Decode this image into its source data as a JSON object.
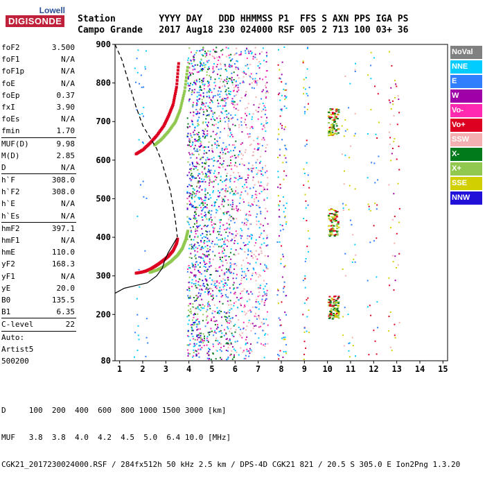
{
  "logo": {
    "line1": "Lowell",
    "line2": "DIGISONDE"
  },
  "header": {
    "line1": "Station        YYYY DAY   DDD HHMMSS P1  FFS S AXN PPS IGA PS",
    "line2": "Campo Grande   2017 Aug18 230 024000 RSF 005 2 713 100 03+ 36"
  },
  "params": [
    {
      "label": "foF2",
      "value": "3.500"
    },
    {
      "label": "foF1",
      "value": "N/A"
    },
    {
      "label": "foF1p",
      "value": "N/A"
    },
    {
      "label": "foE",
      "value": "N/A"
    },
    {
      "label": "foEp",
      "value": "0.37"
    },
    {
      "label": "fxI",
      "value": "3.90"
    },
    {
      "label": "foEs",
      "value": "N/A"
    },
    {
      "label": "fmin",
      "value": "1.70"
    },
    {
      "label": "MUF(D)",
      "value": "9.98"
    },
    {
      "label": "M(D)",
      "value": "2.85"
    },
    {
      "label": "D",
      "value": "N/A"
    },
    {
      "label": "h`F",
      "value": "308.0"
    },
    {
      "label": "h`F2",
      "value": "308.0"
    },
    {
      "label": "h`E",
      "value": "N/A"
    },
    {
      "label": "h`Es",
      "value": "N/A"
    },
    {
      "label": "hmF2",
      "value": "397.1"
    },
    {
      "label": "hmF1",
      "value": "N/A"
    },
    {
      "label": "hmE",
      "value": "110.0"
    },
    {
      "label": "yF2",
      "value": "168.3"
    },
    {
      "label": "yF1",
      "value": "N/A"
    },
    {
      "label": "yE",
      "value": "20.0"
    },
    {
      "label": "B0",
      "value": "135.5"
    },
    {
      "label": "B1",
      "value": "6.35"
    },
    {
      "label": "C-level",
      "value": "22"
    },
    {
      "label": "Auto:",
      "value": ""
    },
    {
      "label": "Artist5",
      "value": ""
    },
    {
      "label": "500200",
      "value": ""
    }
  ],
  "legend": [
    {
      "label": "NoVal",
      "color": "#808080"
    },
    {
      "label": "NNE",
      "color": "#00ccff"
    },
    {
      "label": "E",
      "color": "#2f7fff"
    },
    {
      "label": "W",
      "color": "#a000a8"
    },
    {
      "label": "Vo-",
      "color": "#ff2ab0"
    },
    {
      "label": "Vo+",
      "color": "#dd0020"
    },
    {
      "label": "SSW",
      "color": "#f4b0b0"
    },
    {
      "label": "X-",
      "color": "#007a1a"
    },
    {
      "label": "X+",
      "color": "#90c850"
    },
    {
      "label": "SSE",
      "color": "#d2cf00"
    },
    {
      "label": "NNW",
      "color": "#2010d8"
    }
  ],
  "footer": {
    "line1": "D     100  200  400  600  800 1000 1500 3000 [km]",
    "line2": "MUF   3.8  3.8  4.0  4.2  4.5  5.0  6.4 10.0 [MHz]",
    "line3": "CGK21_2017230024000.RSF / 284fx512h 50 kHz 2.5 km / DPS-4D CGK21 821 / 20.5 S 305.0 E Ion2Png 1.3.20"
  },
  "chart_data": {
    "type": "scatter",
    "xlim": [
      0.8,
      15.2
    ],
    "ylim": [
      80,
      900
    ],
    "xticks": [
      1,
      2,
      3,
      4,
      5,
      6,
      7,
      8,
      9,
      10,
      11,
      12,
      13,
      14,
      15
    ],
    "yticks": [
      80,
      200,
      300,
      400,
      500,
      600,
      700,
      800,
      900
    ],
    "series": [
      {
        "name": "Vo+",
        "color": "#dd0020",
        "x": [
          1.7,
          1.9,
          2.1,
          2.3,
          2.5,
          2.7,
          2.9,
          3.1,
          3.3,
          3.45,
          3.5
        ],
        "y": [
          308,
          310,
          313,
          318,
          325,
          333,
          342,
          352,
          366,
          385,
          398
        ]
      },
      {
        "name": "X+",
        "color": "#90c850",
        "x": [
          2.3,
          2.6,
          2.9,
          3.2,
          3.5,
          3.7,
          3.85,
          3.95
        ],
        "y": [
          310,
          316,
          325,
          338,
          355,
          372,
          395,
          420
        ]
      },
      {
        "name": "Vo+",
        "color": "#dd0020",
        "x": [
          1.7,
          2.0,
          2.3,
          2.6,
          2.9,
          3.1,
          3.3,
          3.45,
          3.55
        ],
        "y": [
          617,
          628,
          645,
          665,
          690,
          715,
          745,
          790,
          860
        ]
      },
      {
        "name": "X+",
        "color": "#90c850",
        "x": [
          2.5,
          2.8,
          3.1,
          3.4,
          3.6,
          3.8,
          3.95
        ],
        "y": [
          640,
          655,
          675,
          700,
          730,
          780,
          850
        ]
      }
    ],
    "profile_solid": {
      "x": [
        0.8,
        1.2,
        1.7,
        2.2,
        2.6,
        2.85,
        2.95,
        3.1,
        3.3,
        3.45,
        3.5
      ],
      "y": [
        255,
        268,
        275,
        282,
        300,
        320,
        340,
        360,
        380,
        395,
        397
      ]
    },
    "profile_dashed": {
      "x": [
        0.8,
        1.1,
        1.4,
        1.7,
        2.0,
        2.3,
        2.6,
        2.8,
        3.0,
        3.2,
        3.4,
        3.5
      ],
      "y": [
        900,
        860,
        800,
        740,
        690,
        660,
        630,
        600,
        560,
        520,
        450,
        400
      ]
    }
  }
}
